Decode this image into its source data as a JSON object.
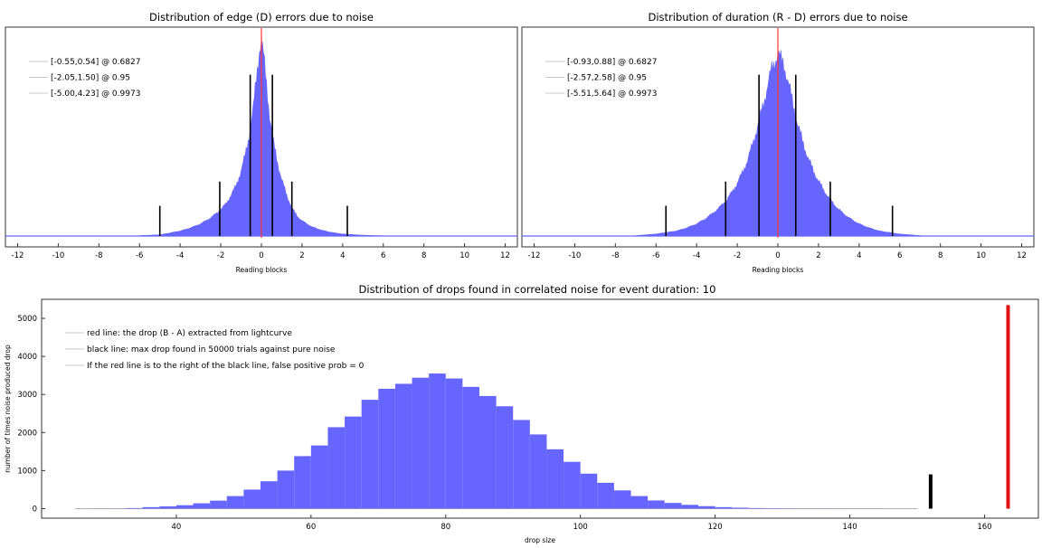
{
  "chart_data": [
    {
      "type": "bar",
      "title": "Distribution of edge (D) errors due to noise",
      "xlabel": "Reading blocks",
      "ylabel": "",
      "xlim": [
        -12.6,
        12.6
      ],
      "ylim": [
        0,
        1.0
      ],
      "y_axis_labeled": false,
      "xticks": [
        -12,
        -10,
        -8,
        -6,
        -4,
        -2,
        0,
        2,
        4,
        6,
        8,
        10,
        12
      ],
      "grid": false,
      "legend_position": "top-left",
      "colors": {
        "histogram": "#6666ff",
        "center_line": "#ff3333",
        "interval_lines": "#000000"
      },
      "histogram": {
        "x": [
          -6,
          -5,
          -4,
          -3.5,
          -3,
          -2.5,
          -2,
          -1.75,
          -1.5,
          -1.25,
          -1,
          -0.8,
          -0.6,
          -0.4,
          -0.25,
          -0.1,
          0,
          0.1,
          0.25,
          0.4,
          0.6,
          0.8,
          1,
          1.25,
          1.5,
          1.75,
          2,
          2.5,
          3,
          3.5,
          4,
          5,
          6
        ],
        "relative_height": [
          0.002,
          0.006,
          0.025,
          0.04,
          0.06,
          0.09,
          0.13,
          0.16,
          0.2,
          0.25,
          0.32,
          0.4,
          0.5,
          0.63,
          0.78,
          0.92,
          0.97,
          0.9,
          0.75,
          0.6,
          0.46,
          0.36,
          0.28,
          0.2,
          0.14,
          0.1,
          0.075,
          0.045,
          0.028,
          0.017,
          0.01,
          0.004,
          0.001
        ]
      },
      "center_line_x": 0,
      "interval_lines": [
        {
          "label": "[-0.55,0.54] @ 0.6827",
          "low": -0.55,
          "high": 0.54,
          "height": 0.8
        },
        {
          "label": "[-2.05,1.50] @ 0.95",
          "low": -2.05,
          "high": 1.5,
          "height": 0.27
        },
        {
          "label": "[-5.00,4.23] @ 0.9973",
          "low": -5.0,
          "high": 4.23,
          "height": 0.15
        }
      ]
    },
    {
      "type": "bar",
      "title": "Distribution of duration (R - D) errors due to noise",
      "xlabel": "Reading blocks",
      "ylabel": "",
      "xlim": [
        -12.6,
        12.6
      ],
      "ylim": [
        0,
        1.0
      ],
      "y_axis_labeled": false,
      "xticks": [
        -12,
        -10,
        -8,
        -6,
        -4,
        -2,
        0,
        2,
        4,
        6,
        8,
        10,
        12
      ],
      "grid": false,
      "legend_position": "top-left",
      "colors": {
        "histogram": "#6666ff",
        "center_line": "#ff3333",
        "interval_lines": "#000000"
      },
      "histogram": {
        "x": [
          -7,
          -6,
          -5,
          -4.5,
          -4,
          -3.5,
          -3,
          -2.5,
          -2,
          -1.5,
          -1,
          -0.6,
          -0.3,
          0,
          0.3,
          0.6,
          1,
          1.5,
          2,
          2.5,
          3,
          3.5,
          4,
          4.5,
          5,
          6,
          7
        ],
        "relative_height": [
          0.002,
          0.01,
          0.025,
          0.04,
          0.06,
          0.09,
          0.13,
          0.18,
          0.26,
          0.37,
          0.54,
          0.7,
          0.83,
          0.9,
          0.85,
          0.72,
          0.54,
          0.38,
          0.27,
          0.19,
          0.13,
          0.09,
          0.06,
          0.04,
          0.025,
          0.01,
          0.002
        ]
      },
      "center_line_x": 0,
      "interval_lines": [
        {
          "label": "[-0.93,0.88] @ 0.6827",
          "low": -0.93,
          "high": 0.88,
          "height": 0.8
        },
        {
          "label": "[-2.57,2.58] @ 0.95",
          "low": -2.57,
          "high": 2.58,
          "height": 0.27
        },
        {
          "label": "[-5.51,5.64] @ 0.9973",
          "low": -5.51,
          "high": 5.64,
          "height": 0.15
        }
      ]
    },
    {
      "type": "bar",
      "title": "Distribution of drops found in correlated noise for event duration: 10",
      "xlabel": "drop size",
      "ylabel": "number of times noise produced drop",
      "xlim": [
        20,
        168
      ],
      "ylim": [
        -250,
        5500
      ],
      "xticks": [
        40,
        60,
        80,
        100,
        120,
        140,
        160
      ],
      "yticks": [
        0,
        1000,
        2000,
        3000,
        4000,
        5000
      ],
      "grid": false,
      "legend_position": "top-left",
      "colors": {
        "histogram": "#6666ff",
        "red_line": "#e01010",
        "black_line": "#000000"
      },
      "bin_width": 2.5,
      "bin_starts": [
        25,
        27.5,
        30,
        32.5,
        35,
        37.5,
        40,
        42.5,
        45,
        47.5,
        50,
        52.5,
        55,
        57.5,
        60,
        62.5,
        65,
        67.5,
        70,
        72.5,
        75,
        77.5,
        80,
        82.5,
        85,
        87.5,
        90,
        92.5,
        95,
        97.5,
        100,
        102.5,
        105,
        107.5,
        110,
        112.5,
        115,
        117.5,
        120,
        122.5,
        125,
        127.5,
        130,
        132.5,
        135,
        137.5,
        140,
        142.5,
        145,
        147.5
      ],
      "values": [
        0,
        2,
        5,
        15,
        40,
        60,
        90,
        140,
        210,
        330,
        500,
        720,
        1000,
        1380,
        1660,
        2140,
        2420,
        2860,
        3150,
        3280,
        3440,
        3550,
        3420,
        3200,
        2960,
        2690,
        2330,
        1950,
        1560,
        1230,
        920,
        680,
        480,
        330,
        215,
        150,
        100,
        65,
        40,
        25,
        15,
        10,
        6,
        4,
        3,
        2,
        1,
        1,
        0,
        0
      ],
      "black_line": {
        "x": 152,
        "height": 900
      },
      "red_line": {
        "x": 163.5,
        "height": 5350
      },
      "legend": [
        "red line: the drop (B - A) extracted from lightcurve",
        "black line: max drop found in 50000 trials against pure noise",
        "If the red line is to the right of the black line, false positive prob = 0"
      ]
    }
  ]
}
